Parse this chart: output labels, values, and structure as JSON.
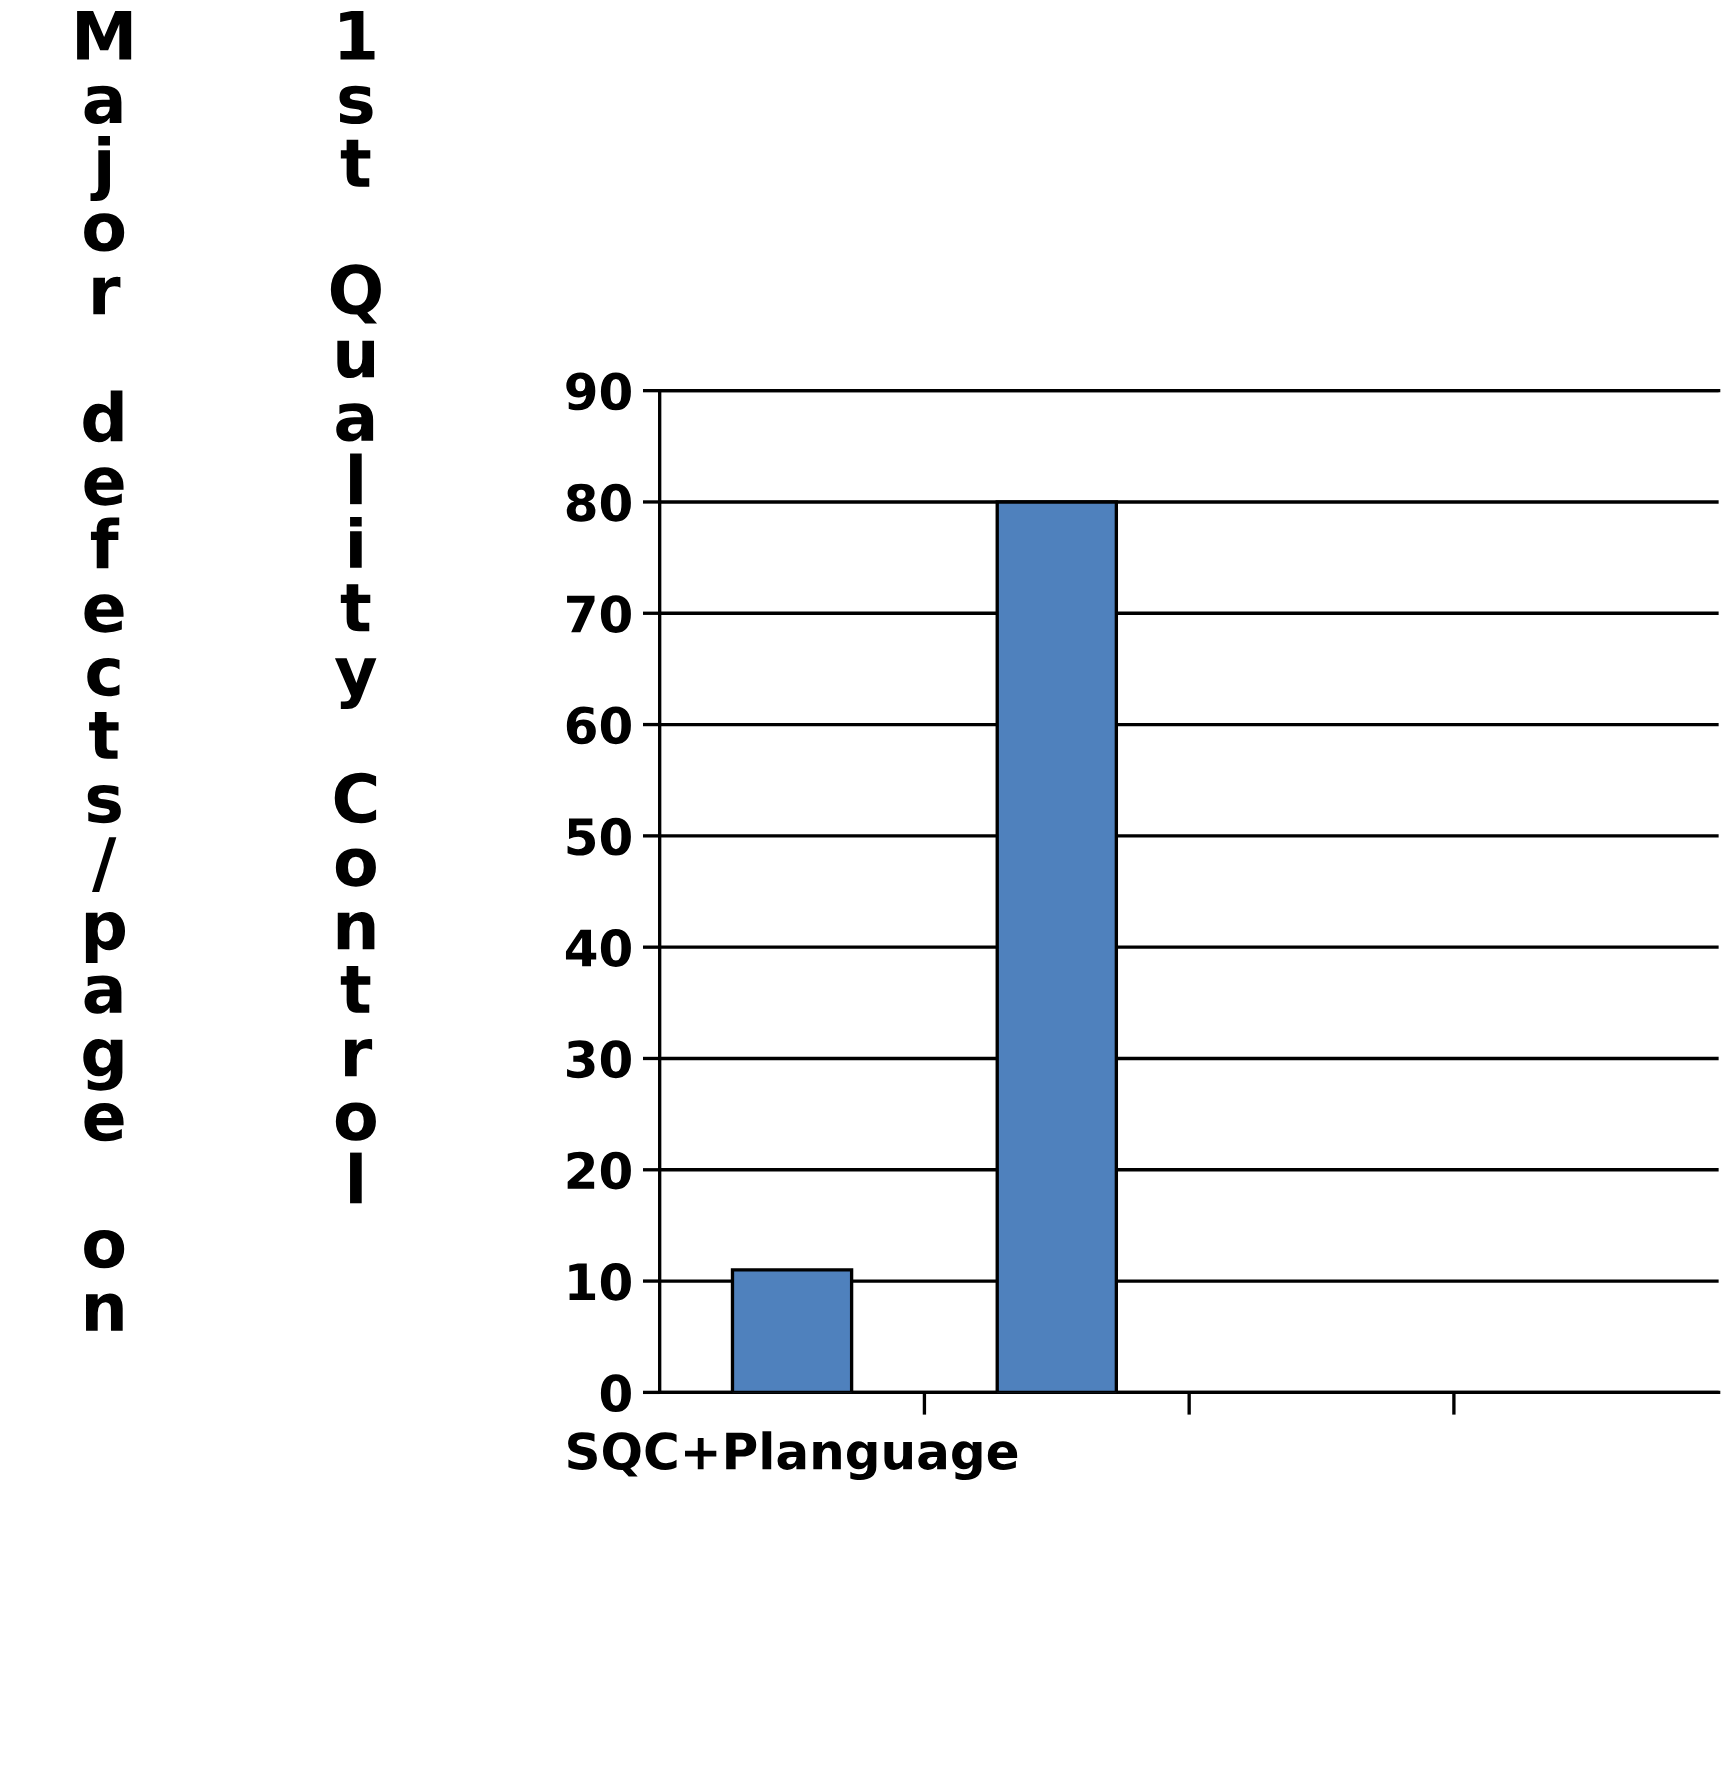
{
  "chart_data": {
    "type": "bar",
    "ylabel": "Major defects/page on 1st Quality Control",
    "categories": [
      "SQC+Planguage",
      null,
      null,
      null
    ],
    "values": [
      11,
      80,
      null,
      null
    ],
    "color": "#4f81bd",
    "ylim": [
      0,
      90
    ],
    "yticks": [
      0,
      10,
      20,
      30,
      40,
      50,
      60,
      70,
      80,
      90
    ],
    "grid": "y"
  }
}
